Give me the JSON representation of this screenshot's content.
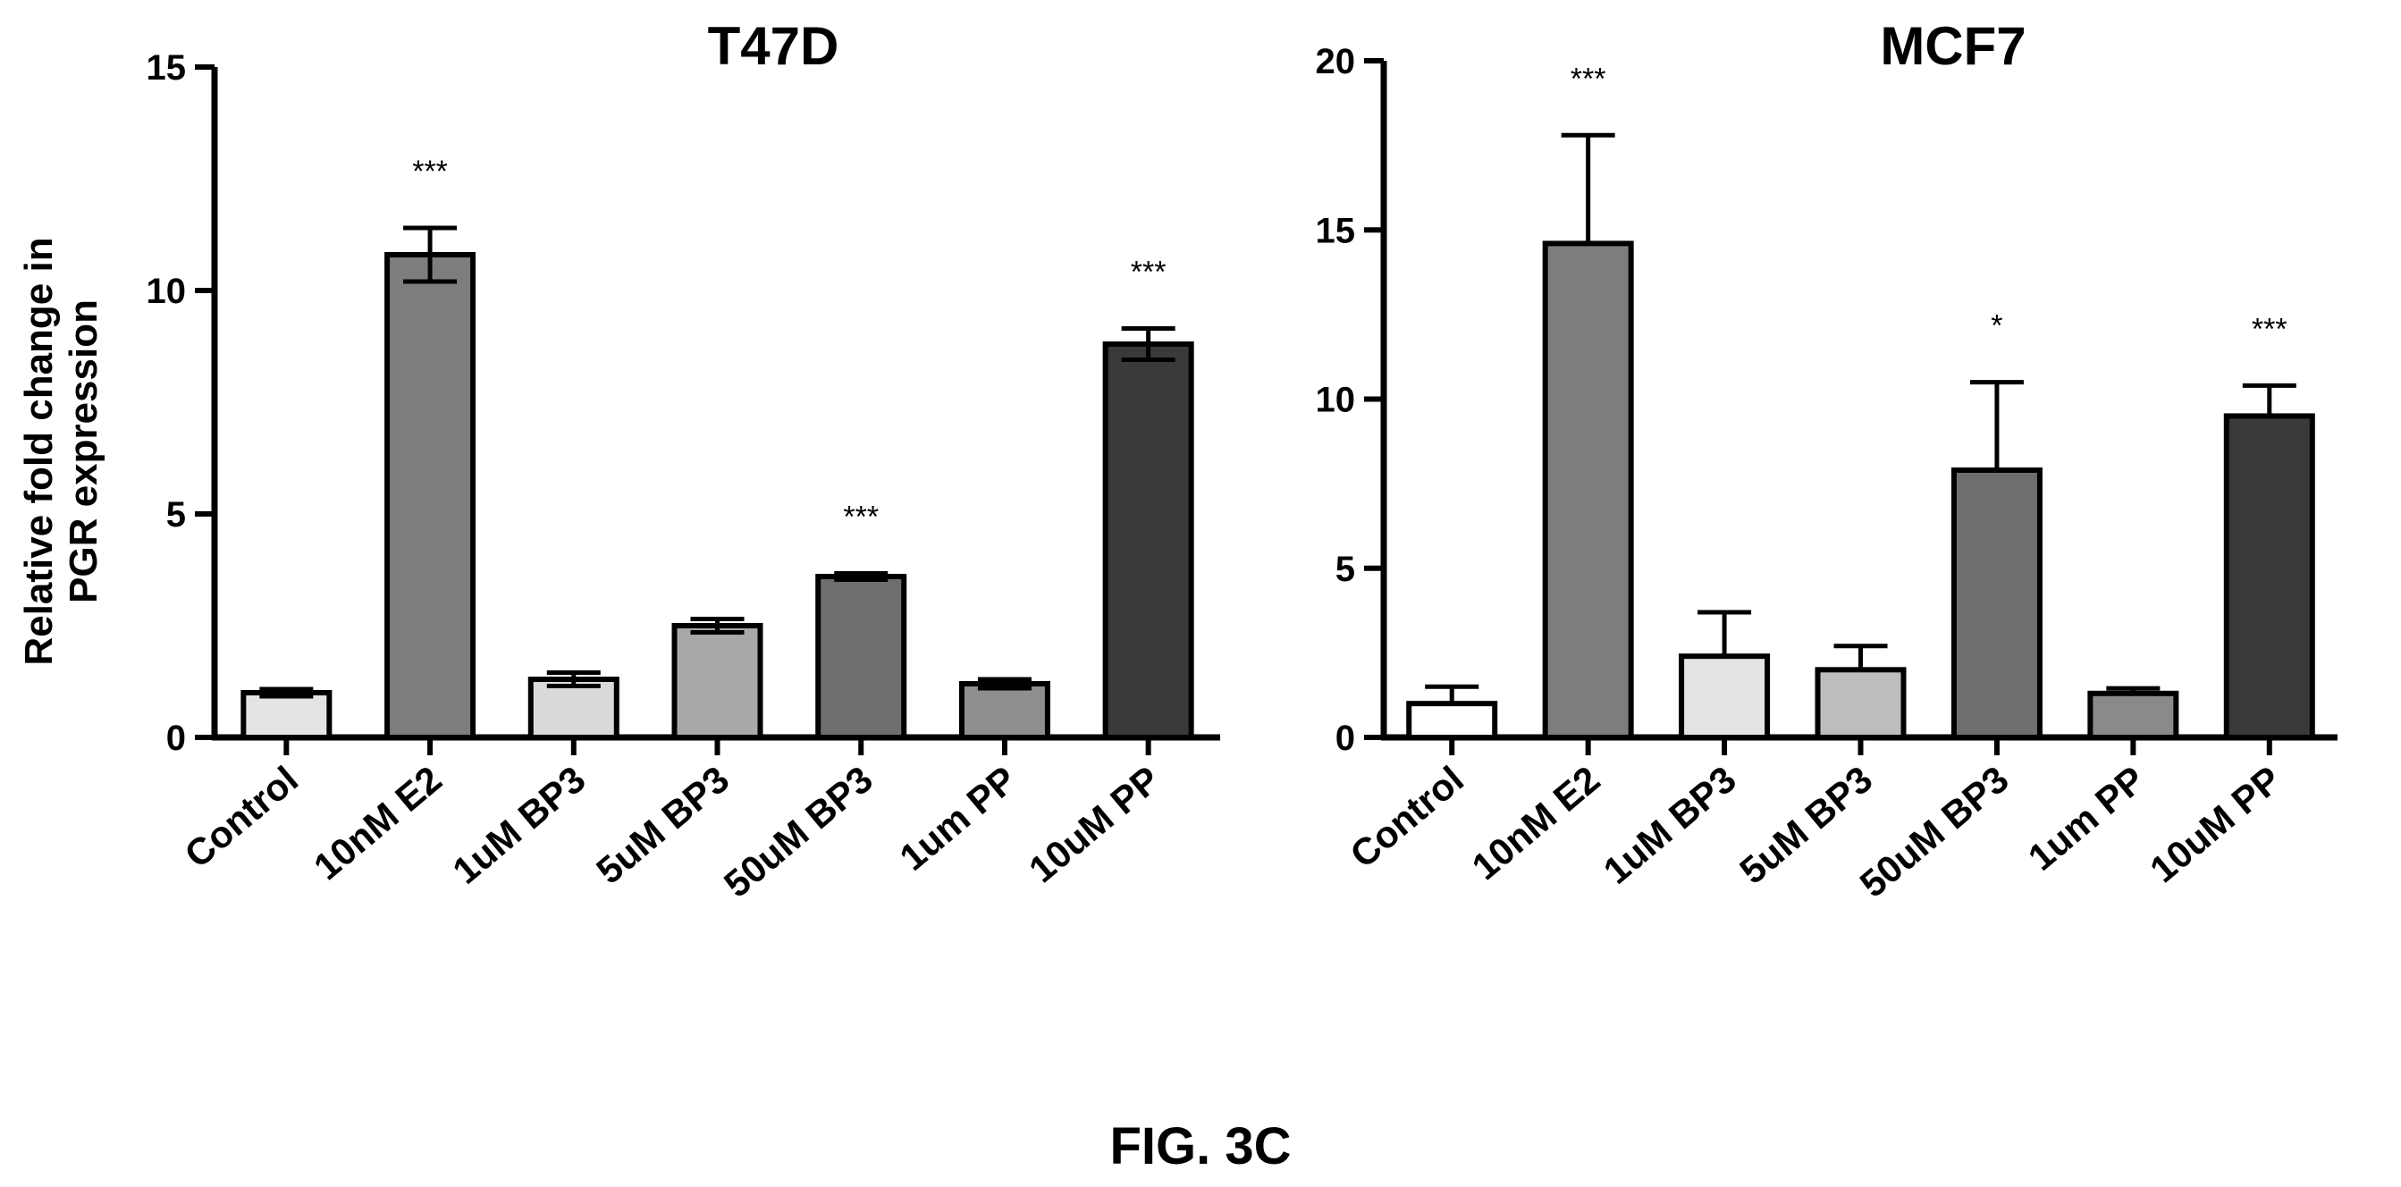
{
  "figure_caption": "FIG. 3C",
  "ylabel_lines": [
    "Relative fold change in",
    "PGR expression"
  ],
  "chart_data": [
    {
      "type": "bar",
      "title": "T47D",
      "ylabel": "Relative fold change in PGR expression",
      "xlabel": "",
      "ylim": [
        0,
        15
      ],
      "yticks": [
        0,
        5,
        10,
        15
      ],
      "categories": [
        "Control",
        "10nM E2",
        "1uM BP3",
        "5uM BP3",
        "50uM BP3",
        "1um PP",
        "10uM PP"
      ],
      "values": [
        1.0,
        10.8,
        1.3,
        2.5,
        3.6,
        1.2,
        8.8
      ],
      "errors": [
        0.08,
        0.6,
        0.15,
        0.15,
        0.07,
        0.1,
        0.35
      ],
      "error_style": "both",
      "significance": [
        "",
        "***",
        "",
        "",
        "***",
        "",
        "***"
      ],
      "colors": [
        "#e4e4e4",
        "#7d7d7d",
        "#dadada",
        "#a8a8a8",
        "#6e6e6e",
        "#8f8f8f",
        "#3a3a3a"
      ],
      "grid": false
    },
    {
      "type": "bar",
      "title": "MCF7",
      "ylabel": "",
      "xlabel": "",
      "ylim": [
        0,
        20
      ],
      "yticks": [
        0,
        5,
        10,
        15,
        20
      ],
      "categories": [
        "Control",
        "10nM E2",
        "1uM BP3",
        "5uM BP3",
        "50uM BP3",
        "1um PP",
        "10uM PP"
      ],
      "values": [
        1.0,
        14.6,
        2.4,
        2.0,
        7.9,
        1.3,
        9.5
      ],
      "errors": [
        0.5,
        3.2,
        1.3,
        0.7,
        2.6,
        0.15,
        0.9
      ],
      "error_style": "upper",
      "significance": [
        "",
        "***",
        "",
        "",
        "*",
        "",
        "***"
      ],
      "colors": [
        "#ffffff",
        "#7d7d7d",
        "#e4e4e4",
        "#bdbdbd",
        "#6e6e6e",
        "#8a8a8a",
        "#3a3a3a"
      ],
      "grid": false
    }
  ]
}
